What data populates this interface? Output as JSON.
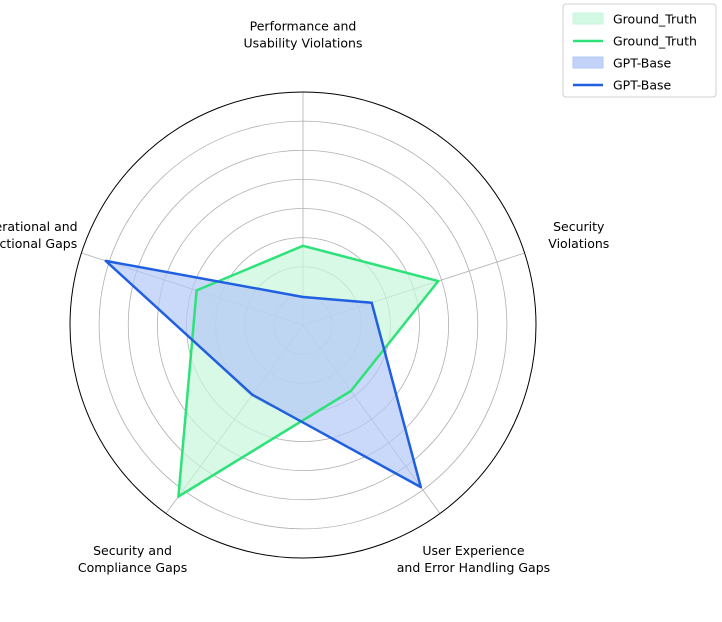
{
  "chart_data": {
    "type": "radar",
    "categories": [
      "Security\nViolations",
      "Performance and\nUsability Violations",
      "Operational and\nFunctional Gaps",
      "Security and\nCompliance Gaps",
      "User Experience\nand Error Handling Gaps"
    ],
    "series": [
      {
        "name": "Ground_Truth",
        "values": [
          0.61,
          0.34,
          0.48,
          0.91,
          0.35
        ],
        "line_color": "#2ee27a",
        "fill_color": "#c8f6dc"
      },
      {
        "name": "GPT-Base",
        "values": [
          0.31,
          0.12,
          0.89,
          0.37,
          0.86
        ],
        "line_color": "#1f5fe0",
        "fill_color": "#b3c7f7"
      }
    ],
    "legend_entries": [
      "Ground_Truth",
      "Ground_Truth",
      "GPT-Base",
      "GPT-Base"
    ],
    "rlim": [
      0,
      1
    ],
    "grid": true,
    "legend_position": "top-right"
  }
}
